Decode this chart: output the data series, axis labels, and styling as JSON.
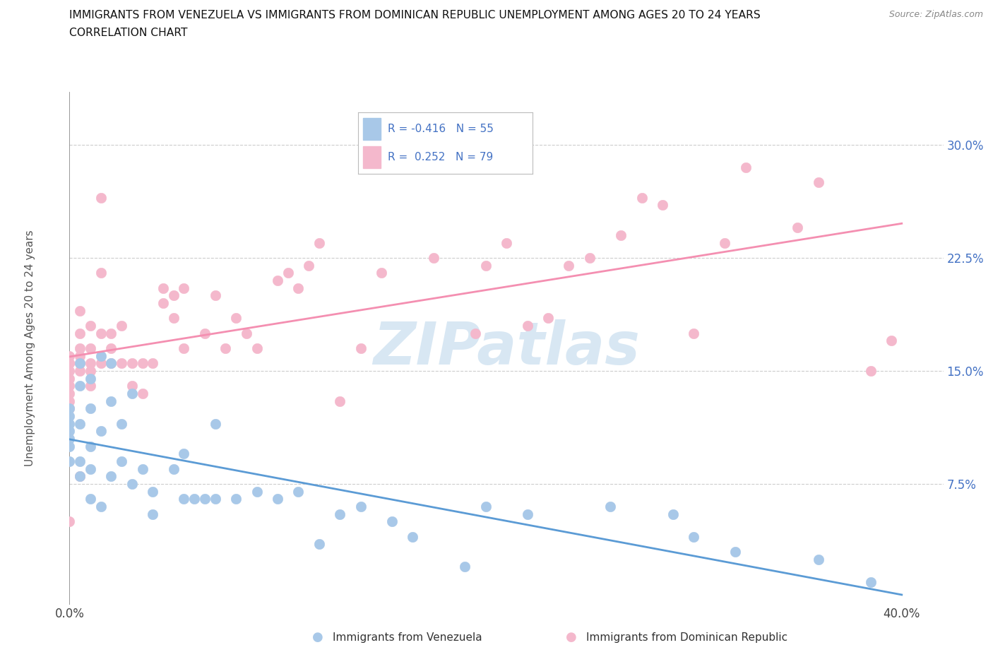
{
  "title_line1": "IMMIGRANTS FROM VENEZUELA VS IMMIGRANTS FROM DOMINICAN REPUBLIC UNEMPLOYMENT AMONG AGES 20 TO 24 YEARS",
  "title_line2": "CORRELATION CHART",
  "source": "Source: ZipAtlas.com",
  "ylabel": "Unemployment Among Ages 20 to 24 years",
  "xlim": [
    0.0,
    0.42
  ],
  "ylim": [
    -0.005,
    0.335
  ],
  "ytick_positions": [
    0.075,
    0.15,
    0.225,
    0.3
  ],
  "ytick_labels": [
    "7.5%",
    "15.0%",
    "22.5%",
    "30.0%"
  ],
  "color_venezuela": "#a8c8e8",
  "color_dr": "#f4b8cc",
  "color_line_venezuela": "#5b9bd5",
  "color_line_dr": "#f48fb1",
  "watermark": "ZIPatlas",
  "background_color": "#ffffff",
  "grid_color": "#cccccc",
  "venezuela_x": [
    0.0,
    0.0,
    0.0,
    0.0,
    0.0,
    0.0,
    0.0,
    0.005,
    0.005,
    0.005,
    0.005,
    0.005,
    0.01,
    0.01,
    0.01,
    0.01,
    0.01,
    0.015,
    0.015,
    0.015,
    0.02,
    0.02,
    0.02,
    0.025,
    0.025,
    0.03,
    0.03,
    0.035,
    0.04,
    0.04,
    0.05,
    0.055,
    0.055,
    0.06,
    0.065,
    0.07,
    0.07,
    0.08,
    0.09,
    0.1,
    0.11,
    0.12,
    0.13,
    0.14,
    0.155,
    0.165,
    0.19,
    0.2,
    0.22,
    0.26,
    0.29,
    0.3,
    0.32,
    0.36,
    0.385
  ],
  "venezuela_y": [
    0.125,
    0.12,
    0.115,
    0.11,
    0.105,
    0.1,
    0.09,
    0.155,
    0.14,
    0.115,
    0.09,
    0.08,
    0.145,
    0.125,
    0.1,
    0.085,
    0.065,
    0.16,
    0.11,
    0.06,
    0.155,
    0.13,
    0.08,
    0.115,
    0.09,
    0.135,
    0.075,
    0.085,
    0.07,
    0.055,
    0.085,
    0.095,
    0.065,
    0.065,
    0.065,
    0.115,
    0.065,
    0.065,
    0.07,
    0.065,
    0.07,
    0.035,
    0.055,
    0.06,
    0.05,
    0.04,
    0.02,
    0.06,
    0.055,
    0.06,
    0.055,
    0.04,
    0.03,
    0.025,
    0.01
  ],
  "dr_x": [
    0.0,
    0.0,
    0.0,
    0.0,
    0.0,
    0.0,
    0.0,
    0.0,
    0.0,
    0.0,
    0.005,
    0.005,
    0.005,
    0.005,
    0.005,
    0.005,
    0.005,
    0.01,
    0.01,
    0.01,
    0.01,
    0.01,
    0.015,
    0.015,
    0.015,
    0.015,
    0.02,
    0.02,
    0.02,
    0.025,
    0.025,
    0.03,
    0.03,
    0.035,
    0.035,
    0.04,
    0.045,
    0.045,
    0.05,
    0.05,
    0.055,
    0.055,
    0.065,
    0.07,
    0.075,
    0.08,
    0.085,
    0.09,
    0.1,
    0.105,
    0.11,
    0.115,
    0.12,
    0.13,
    0.14,
    0.15,
    0.175,
    0.195,
    0.2,
    0.21,
    0.22,
    0.23,
    0.24,
    0.25,
    0.265,
    0.275,
    0.285,
    0.3,
    0.315,
    0.325,
    0.35,
    0.36,
    0.385,
    0.395
  ],
  "dr_y": [
    0.16,
    0.155,
    0.155,
    0.15,
    0.145,
    0.14,
    0.135,
    0.13,
    0.125,
    0.05,
    0.19,
    0.175,
    0.165,
    0.16,
    0.155,
    0.15,
    0.08,
    0.18,
    0.165,
    0.155,
    0.15,
    0.14,
    0.265,
    0.215,
    0.175,
    0.155,
    0.175,
    0.165,
    0.155,
    0.18,
    0.155,
    0.155,
    0.14,
    0.155,
    0.135,
    0.155,
    0.205,
    0.195,
    0.2,
    0.185,
    0.205,
    0.165,
    0.175,
    0.2,
    0.165,
    0.185,
    0.175,
    0.165,
    0.21,
    0.215,
    0.205,
    0.22,
    0.235,
    0.13,
    0.165,
    0.215,
    0.225,
    0.175,
    0.22,
    0.235,
    0.18,
    0.185,
    0.22,
    0.225,
    0.24,
    0.265,
    0.26,
    0.175,
    0.235,
    0.285,
    0.245,
    0.275,
    0.15,
    0.17
  ]
}
